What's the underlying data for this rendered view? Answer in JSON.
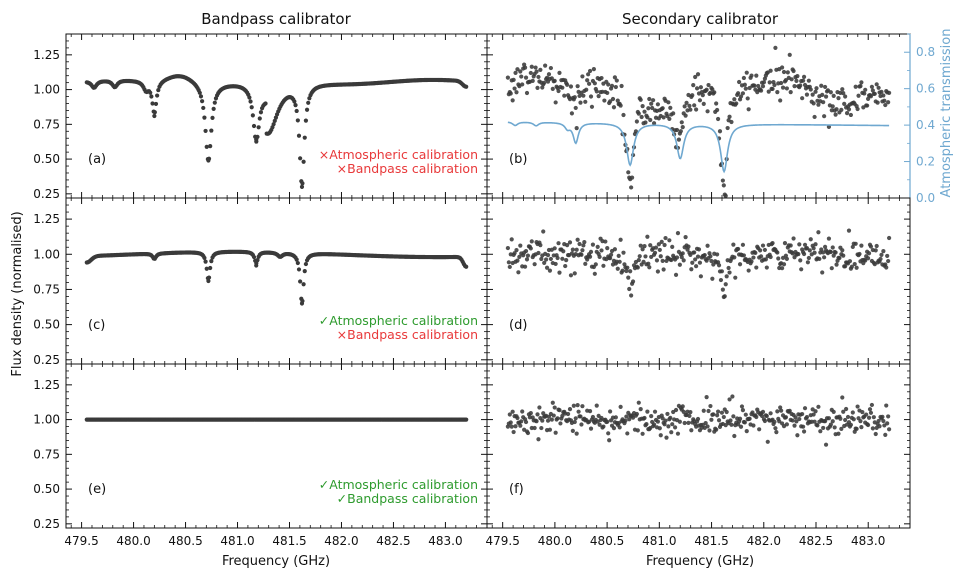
{
  "figure": {
    "left_title": "Bandpass calibrator",
    "right_title": "Secondary calibrator",
    "ylabel": "Flux density (normalised)",
    "xlabel": "Frequency (GHz)",
    "right_ylabel": "Atmospheric transmission"
  },
  "colors": {
    "points": "#3a3a3a",
    "transmission": "#6fa8d0",
    "fail": "#e8393a",
    "pass": "#2e9b2e"
  },
  "chart_data": {
    "type": "scatter",
    "x_range": [
      479.35,
      483.4
    ],
    "x_ticks": [
      479.5,
      480.0,
      480.5,
      481.0,
      481.5,
      482.0,
      482.5,
      483.0
    ],
    "x_tick_labels": [
      "479.5",
      "480.0",
      "480.5",
      "481.0",
      "481.5",
      "482.0",
      "482.5",
      "483.0"
    ],
    "y_range": [
      0.22,
      1.4
    ],
    "y_ticks": [
      0.25,
      0.5,
      0.75,
      1.0,
      1.25
    ],
    "y_tick_labels": [
      "0.25",
      "0.50",
      "0.75",
      "1.00",
      "1.25"
    ],
    "right_axis": {
      "label": "Atmospheric transmission",
      "range": [
        0.0,
        0.9
      ],
      "ticks": [
        0.0,
        0.2,
        0.4,
        0.6,
        0.8
      ],
      "tick_labels": [
        "0.0",
        "0.2",
        "0.4",
        "0.6",
        "0.8"
      ]
    },
    "spectrum_x_range": [
      479.55,
      483.2
    ],
    "absorption_lines": [
      {
        "center_ghz": 479.62,
        "depth": 0.05
      },
      {
        "center_ghz": 479.82,
        "depth": 0.05
      },
      {
        "center_ghz": 480.12,
        "depth": 0.06
      },
      {
        "center_ghz": 480.2,
        "depth": 0.25
      },
      {
        "center_ghz": 480.72,
        "depth": 0.62
      },
      {
        "center_ghz": 481.18,
        "depth": 0.48
      },
      {
        "center_ghz": 481.62,
        "depth": 0.78
      }
    ],
    "panels": [
      {
        "label": "(a)",
        "calibrator": "Bandpass calibrator",
        "description": "uncalibrated bandpass spectrum with baseline ripple and atmospheric absorption dips",
        "baseline_level": 1.06,
        "dip_minima": [
          {
            "freq": 480.2,
            "value": 0.81
          },
          {
            "freq": 480.72,
            "value": 0.49
          },
          {
            "freq": 481.18,
            "value": 0.64
          },
          {
            "freq": 481.62,
            "value": 0.3
          }
        ],
        "status": [
          {
            "mark": "×",
            "text": "Atmospheric calibration",
            "state": "fail"
          },
          {
            "mark": "×",
            "text": "Bandpass calibration",
            "state": "fail"
          }
        ]
      },
      {
        "label": "(b)",
        "calibrator": "Secondary calibrator",
        "description": "noisy secondary calibrator spectrum with overlaid atmospheric transmission curve",
        "mean_level": 0.99,
        "scatter_sigma": 0.065,
        "transmission_baseline": 0.42,
        "transmission_minima": [
          {
            "freq": 480.2,
            "value": 0.29
          },
          {
            "freq": 480.72,
            "value": 0.18
          },
          {
            "freq": 481.2,
            "value": 0.23
          },
          {
            "freq": 481.62,
            "value": 0.15
          }
        ]
      },
      {
        "label": "(c)",
        "calibrator": "Bandpass calibrator",
        "description": "after atmospheric calibration, flat bandpass near 1.0 with residual dips",
        "baseline_level": 1.0,
        "dip_minima": [
          {
            "freq": 480.2,
            "value": 0.96
          },
          {
            "freq": 480.72,
            "value": 0.81
          },
          {
            "freq": 481.18,
            "value": 0.92
          },
          {
            "freq": 481.62,
            "value": 0.65
          }
        ],
        "status": [
          {
            "mark": "✓",
            "text": "Atmospheric calibration",
            "state": "pass"
          },
          {
            "mark": "×",
            "text": "Bandpass calibration",
            "state": "fail"
          }
        ]
      },
      {
        "label": "(d)",
        "calibrator": "Secondary calibrator",
        "description": "secondary calibrator after atmospheric calibration, scattered around 1.0",
        "mean_level": 1.0,
        "scatter_sigma": 0.06
      },
      {
        "label": "(e)",
        "calibrator": "Bandpass calibrator",
        "description": "fully calibrated bandpass, flat at 1.00",
        "baseline_level": 1.0,
        "status": [
          {
            "mark": "✓",
            "text": "Atmospheric calibration",
            "state": "pass"
          },
          {
            "mark": "✓",
            "text": "Bandpass calibration",
            "state": "pass"
          }
        ]
      },
      {
        "label": "(f)",
        "calibrator": "Secondary calibrator",
        "description": "fully calibrated secondary calibrator, scattered around 1.0",
        "mean_level": 1.0,
        "scatter_sigma": 0.055
      }
    ]
  }
}
